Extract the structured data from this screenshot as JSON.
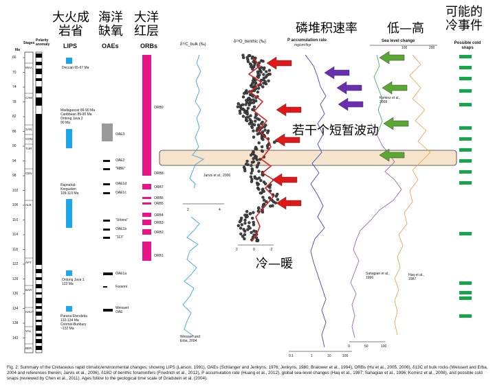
{
  "annotations_cn": {
    "lips": "大火成\n岩省",
    "oaes": "海洋\n缺氧",
    "orbs": "大洋\n红层",
    "p_rate": "磷堆积速率",
    "sea_level": "低—高",
    "cold": "可能的\n冷事件",
    "fluct": "若干个短暂波动",
    "cold_warm": "冷—暖"
  },
  "headers": {
    "ma": "Ma",
    "stages": "Stages",
    "polarity": "Polarity anomaly",
    "lips": "LIPS",
    "oaes": "OAEs",
    "orbs": "ORBs",
    "d13c": "δ¹³C_bulk (‰)",
    "d18o": "δ¹⁸O_benthic (‰)",
    "p_rate": "P accumulation rate",
    "p_rate_unit": "mg/cm²/kyr",
    "sea_level": "Sea level change",
    "possible_cold": "Possible cold snaps"
  },
  "age_ticks": [
    "66",
    "70",
    "74",
    "78",
    "82",
    "86",
    "90",
    "94",
    "98",
    "102",
    "106",
    "110",
    "114",
    "118",
    "122",
    "126",
    "130",
    "134",
    "138",
    "142"
  ],
  "stages": [
    "MAA",
    "CAM",
    "SAN",
    "CON",
    "TUR",
    "CEN",
    "ALB",
    "APT",
    "BAR",
    "HAUT",
    "VAL",
    "BER"
  ],
  "lips": [
    {
      "label": "Deccan 65-67 Ma"
    },
    {
      "label": "Madagascar 86-90 Ma\nCaribbean 89-90 Ma\nOntong Java 2\n90 Ma"
    },
    {
      "label": "Rajmahal-\nKerguelen\n109-119 Ma"
    },
    {
      "label": "Ontong Java 1\n122 Ma"
    },
    {
      "label": "Parana-Etendeka\n132-134 Ma\nCoomei-Bunbury\n~132 Ma"
    }
  ],
  "oaes": [
    "OAE3",
    "OAE2",
    "\"MBE\"",
    "OAE1d",
    "OAE1c",
    "\"Urbino\"",
    "OAE1b",
    "\"113\"",
    "OAE1a",
    "Faraoni",
    "Weissert\nOAE"
  ],
  "orbs": [
    "ORB9",
    "ORB8",
    "ORB7",
    "ORB6",
    "ORB5",
    "ORB4",
    "ORB3",
    "ORB2",
    "ORB1"
  ],
  "refs": {
    "jarvis": "Jarvis et al., 2006",
    "weissert": "Weissert and\nErba, 2004",
    "kominz": "Kominz et al.,\n2008",
    "sahagian": "Sahagian et al.,\n1996",
    "haq": "Haq et al.,\n1987"
  },
  "axis_d13c": [
    "2",
    "4"
  ],
  "axis_d18o": [
    "2",
    "0",
    "-2"
  ],
  "axis_p": [
    "0.1",
    "1",
    "10",
    "100"
  ],
  "axis_sea": [
    "100",
    "200"
  ],
  "axis_sea_bottom": [
    "0",
    "50",
    "100"
  ],
  "caption": "Fig. 2. Summary of the Cretaceous rapid climatic/environmental changes, showing LIPS (Larson, 1991), OAEs (Schlanger and Jenkyns, 1976; Jenkyns, 1980; Bralower et al., 1994), ORBs (Hu et al., 2005, 2006), δ13C of bulk rocks (Weissert and Erba, 2004 and references therein; Jarvis et al., 2006), δ18O of benthic foraminifers (Friedrich et al., 2012), P accumulation rate (Huang et al., 2012), global sea-level changes (Haq et al., 1987; Sahagian et al., 1996; Kominz et al., 2008), and possible cold snaps (reviewed by Chen et al., 2011). Ages follow to the geological time scale of Gradstein et al. (2004).",
  "colors": {
    "orb": "#e8158a",
    "lip": "#1aa6e8",
    "cold": "#12a84a",
    "red_arrow": "#e01818",
    "purple_arrow": "#6a2fb0",
    "green_arrow": "#5aa832",
    "band": "#f3d9b8"
  }
}
